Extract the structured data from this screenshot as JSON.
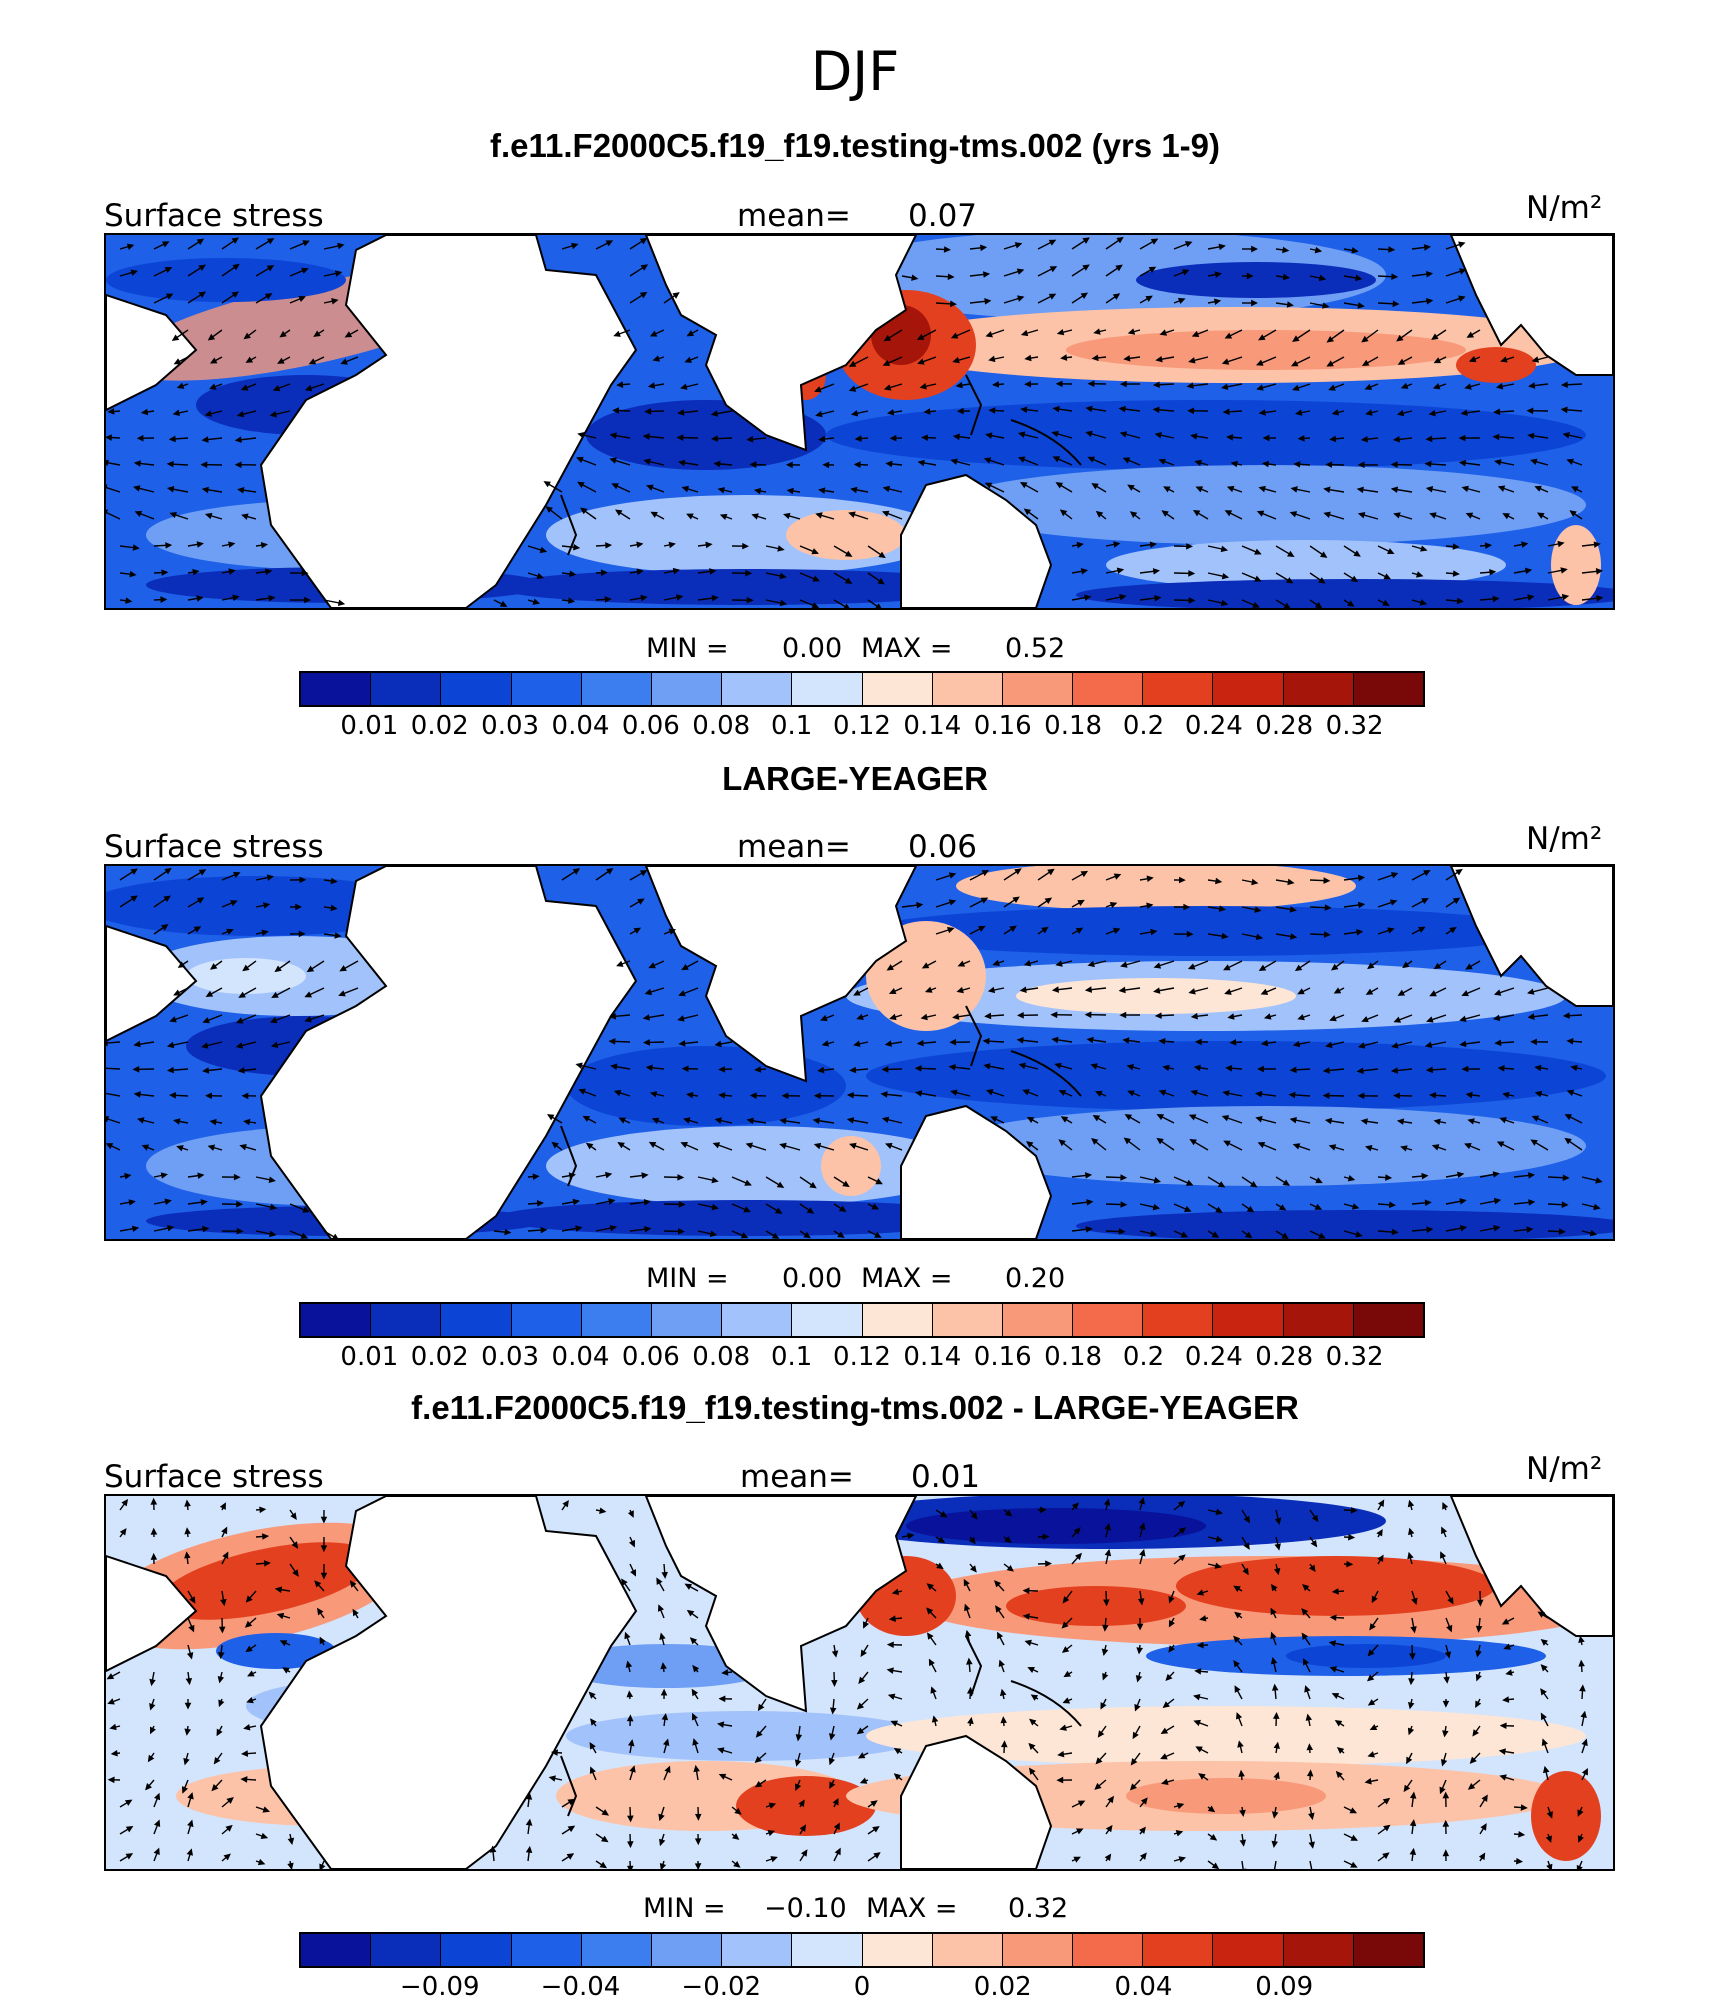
{
  "season": "DJF",
  "colors": [
    "#08129a",
    "#0a2dba",
    "#0c45d6",
    "#1e60e8",
    "#3c7ef0",
    "#6e9ff5",
    "#a2c2fb",
    "#d3e4fd",
    "#fde6d6",
    "#fcc3a8",
    "#f8997a",
    "#f36b4b",
    "#e3401f",
    "#c82410",
    "#a5150a",
    "#790808"
  ],
  "panels": [
    {
      "title": "f.e11.F2000C5.f19_f19.testing-tms.002 (yrs 1-9)",
      "variable": "Surface stress",
      "mean_label": "mean=",
      "mean_value": "0.07",
      "units": "N/m²",
      "min_label": "MIN =",
      "min_value": "0.00",
      "max_label": "MAX =",
      "max_value": "0.52",
      "ticks": [
        "0.01",
        "0.02",
        "0.03",
        "0.04",
        "0.06",
        "0.08",
        "0.1",
        "0.12",
        "0.14",
        "0.16",
        "0.18",
        "0.2",
        "0.24",
        "0.28",
        "0.32"
      ]
    },
    {
      "title": "LARGE-YEAGER",
      "variable": "Surface stress",
      "mean_label": "mean=",
      "mean_value": "0.06",
      "units": "N/m²",
      "min_label": "MIN =",
      "min_value": "0.00",
      "max_label": "MAX =",
      "max_value": "0.20",
      "ticks": [
        "0.01",
        "0.02",
        "0.03",
        "0.04",
        "0.06",
        "0.08",
        "0.1",
        "0.12",
        "0.14",
        "0.16",
        "0.18",
        "0.2",
        "0.24",
        "0.28",
        "0.32"
      ]
    },
    {
      "title": "f.e11.F2000C5.f19_f19.testing-tms.002 - LARGE-YEAGER",
      "variable": "Surface stress",
      "mean_label": "mean=",
      "mean_value": "0.01",
      "units": "N/m²",
      "min_label": "MIN =",
      "min_value": "−0.10",
      "max_label": "MAX =",
      "max_value": "0.32",
      "ticks": [
        "−0.09",
        "−0.04",
        "−0.02",
        "0",
        "0.02",
        "0.04",
        "0.09"
      ]
    }
  ]
}
